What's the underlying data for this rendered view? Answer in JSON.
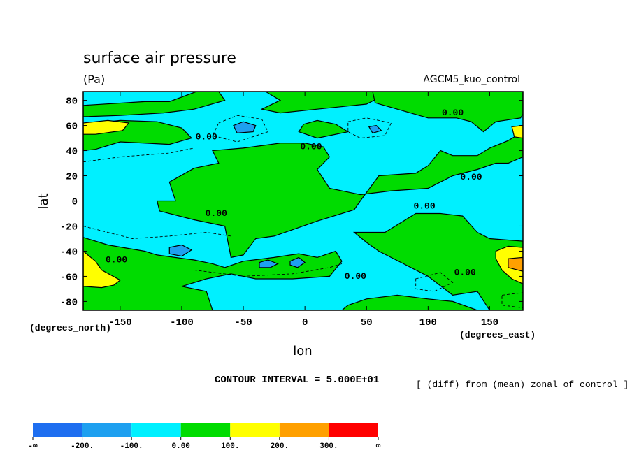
{
  "chart_data": {
    "type": "heatmap",
    "title": "surface air pressure",
    "units": "(Pa)",
    "model": "AGCM5_kuo_control",
    "xlabel": "lon",
    "ylabel": "lat",
    "xunits": "(degrees_east)",
    "yunits": "(degrees_north)",
    "xlim": [
      -180,
      177
    ],
    "ylim": [
      -87,
      87
    ],
    "xticks": [
      -150,
      -100,
      -50,
      0,
      50,
      100,
      150
    ],
    "xtick_labels": [
      "-150",
      "-100",
      "-50",
      "0",
      "50",
      "100",
      "150"
    ],
    "yticks": [
      80,
      60,
      40,
      20,
      0,
      -20,
      -40,
      -60,
      -80
    ],
    "ytick_labels": [
      "80",
      "60",
      "40",
      "20",
      "0",
      "-20",
      "-40",
      "-60",
      "-80"
    ],
    "contour_interval": "CONTOUR INTERVAL = 5.000E+01",
    "note": "[ (diff) from (mean) zonal of control ]",
    "contour_labels": [
      {
        "text": "0.00",
        "lon": -153,
        "lat": -49
      },
      {
        "text": "0.00",
        "lon": -80,
        "lat": 49
      },
      {
        "text": "0.00",
        "lon": 5,
        "lat": 41
      },
      {
        "text": "0.00",
        "lon": -72,
        "lat": -12
      },
      {
        "text": "0.00",
        "lon": 120,
        "lat": 68
      },
      {
        "text": "0.00",
        "lon": 135,
        "lat": 17
      },
      {
        "text": "0.00",
        "lon": 97,
        "lat": -6
      },
      {
        "text": "0.00",
        "lon": 41,
        "lat": -62
      },
      {
        "text": "0.00",
        "lon": 130,
        "lat": -59
      }
    ],
    "colorbar": {
      "labels": [
        "-∞",
        "-200.",
        "-100.",
        "0.00",
        "100.",
        "200.",
        "300.",
        "∞"
      ],
      "colors": [
        "#1e6ef0",
        "#1ea0f0",
        "#00f0ff",
        "#00dc00",
        "#ffff00",
        "#ffa000",
        "#ff0000"
      ]
    },
    "regions": [
      {
        "level": "0 to 100",
        "color": "#00dc00",
        "lonlat": [
          [
            -180,
            76
          ],
          [
            -130,
            79
          ],
          [
            -110,
            79
          ],
          [
            -88,
            87
          ],
          [
            -70,
            87
          ],
          [
            -65,
            80
          ],
          [
            -90,
            73
          ],
          [
            -115,
            70
          ],
          [
            -150,
            68
          ],
          [
            -180,
            67
          ]
        ]
      },
      {
        "level": "0 to 100",
        "color": "#00dc00",
        "lonlat": [
          [
            -180,
            61
          ],
          [
            -150,
            64
          ],
          [
            -120,
            63
          ],
          [
            -100,
            58
          ],
          [
            -92,
            50
          ],
          [
            -110,
            45
          ],
          [
            -150,
            47
          ],
          [
            -170,
            41
          ],
          [
            -180,
            40
          ]
        ]
      },
      {
        "level": "0 to 100",
        "color": "#00dc00",
        "lonlat": [
          [
            -32,
            87
          ],
          [
            -20,
            80
          ],
          [
            -35,
            73
          ],
          [
            -20,
            70
          ],
          [
            10,
            73
          ],
          [
            50,
            77
          ],
          [
            58,
            81
          ],
          [
            56,
            87
          ]
        ]
      },
      {
        "level": "0 to 100",
        "color": "#00dc00",
        "lonlat": [
          [
            55,
            87
          ],
          [
            57,
            78
          ],
          [
            75,
            73
          ],
          [
            100,
            66
          ],
          [
            123,
            66
          ],
          [
            135,
            63
          ],
          [
            145,
            55
          ],
          [
            155,
            63
          ],
          [
            175,
            66
          ],
          [
            177,
            69
          ],
          [
            177,
            87
          ]
        ]
      },
      {
        "level": "0 to 100",
        "color": "#00dc00",
        "lonlat": [
          [
            -1,
            61
          ],
          [
            10,
            64
          ],
          [
            25,
            61
          ],
          [
            35,
            55
          ],
          [
            10,
            50
          ],
          [
            -5,
            55
          ]
        ]
      },
      {
        "level": "0 to 100",
        "color": "#00dc00",
        "lonlat": [
          [
            -90,
            26
          ],
          [
            -70,
            30
          ],
          [
            -75,
            40
          ],
          [
            -50,
            42
          ],
          [
            -20,
            46
          ],
          [
            0,
            46
          ],
          [
            15,
            43
          ],
          [
            20,
            35
          ],
          [
            10,
            25
          ],
          [
            20,
            10
          ],
          [
            45,
            5
          ],
          [
            70,
            8
          ],
          [
            100,
            10
          ],
          [
            120,
            20
          ],
          [
            140,
            25
          ],
          [
            155,
            30
          ],
          [
            165,
            30
          ],
          [
            177,
            35
          ],
          [
            177,
            55
          ],
          [
            165,
            48
          ],
          [
            150,
            42
          ],
          [
            140,
            36
          ],
          [
            120,
            36
          ],
          [
            110,
            40
          ],
          [
            100,
            28
          ],
          [
            90,
            22
          ],
          [
            60,
            20
          ],
          [
            45,
            0
          ],
          [
            40,
            -7
          ],
          [
            10,
            -16
          ],
          [
            -25,
            -28
          ],
          [
            -40,
            -30
          ],
          [
            -50,
            -43
          ],
          [
            -60,
            -45
          ],
          [
            -62,
            -35
          ],
          [
            -65,
            -20
          ],
          [
            -90,
            -15
          ],
          [
            -118,
            -8
          ],
          [
            -120,
            0
          ],
          [
            -105,
            0
          ],
          [
            -110,
            15
          ]
        ]
      },
      {
        "level": "0 to 100",
        "color": "#00dc00",
        "lonlat": [
          [
            40,
            -25
          ],
          [
            65,
            -25
          ],
          [
            90,
            -10
          ],
          [
            110,
            -10
          ],
          [
            128,
            -12
          ],
          [
            140,
            -25
          ],
          [
            150,
            -30
          ],
          [
            177,
            -32
          ],
          [
            177,
            -87
          ],
          [
            150,
            -87
          ],
          [
            140,
            -72
          ],
          [
            120,
            -75
          ],
          [
            100,
            -60
          ],
          [
            80,
            -50
          ],
          [
            60,
            -40
          ],
          [
            50,
            -33
          ]
        ]
      },
      {
        "level": "0 to 100",
        "color": "#00dc00",
        "lonlat": [
          [
            -180,
            -29
          ],
          [
            -160,
            -35
          ],
          [
            -130,
            -40
          ],
          [
            -120,
            -43
          ],
          [
            -90,
            -47
          ],
          [
            -75,
            -50
          ],
          [
            -65,
            -53
          ],
          [
            -50,
            -48
          ],
          [
            -25,
            -45
          ],
          [
            -5,
            -42
          ],
          [
            10,
            -45
          ],
          [
            25,
            -40
          ],
          [
            30,
            -48
          ],
          [
            20,
            -60
          ],
          [
            -10,
            -62
          ],
          [
            -40,
            -62
          ],
          [
            -60,
            -58
          ],
          [
            -80,
            -62
          ],
          [
            -100,
            -68
          ],
          [
            -80,
            -72
          ],
          [
            -75,
            -87
          ],
          [
            -180,
            -87
          ]
        ]
      },
      {
        "level": "0 to 100",
        "color": "#00dc00",
        "lonlat": [
          [
            35,
            -83
          ],
          [
            50,
            -78
          ],
          [
            75,
            -75
          ],
          [
            100,
            -78
          ],
          [
            120,
            -80
          ],
          [
            140,
            -87
          ],
          [
            30,
            -87
          ]
        ]
      },
      {
        "level": "100 to 200",
        "color": "#ffff00",
        "lonlat": [
          [
            -180,
            62
          ],
          [
            -160,
            64
          ],
          [
            -143,
            62
          ],
          [
            -148,
            56
          ],
          [
            -170,
            53
          ],
          [
            -180,
            53
          ]
        ]
      },
      {
        "level": "100 to 200",
        "color": "#ffff00",
        "lonlat": [
          [
            168,
            59
          ],
          [
            177,
            60
          ],
          [
            177,
            50
          ],
          [
            170,
            51
          ]
        ]
      },
      {
        "level": "100 to 200",
        "color": "#ffff00",
        "lonlat": [
          [
            -180,
            -40
          ],
          [
            -170,
            -48
          ],
          [
            -165,
            -55
          ],
          [
            -150,
            -63
          ],
          [
            -155,
            -67
          ],
          [
            -165,
            -69
          ],
          [
            -180,
            -68
          ]
        ]
      },
      {
        "level": "100 to 200",
        "color": "#ffff00",
        "lonlat": [
          [
            155,
            -40
          ],
          [
            165,
            -36
          ],
          [
            177,
            -37
          ],
          [
            177,
            -66
          ],
          [
            168,
            -62
          ],
          [
            160,
            -55
          ],
          [
            155,
            -46
          ]
        ]
      },
      {
        "level": "200 to 300",
        "color": "#ffa000",
        "lonlat": [
          [
            165,
            -46
          ],
          [
            177,
            -45
          ],
          [
            177,
            -56
          ],
          [
            165,
            -53
          ]
        ]
      },
      {
        "level": "-200 to -100",
        "color": "#1ea0f0",
        "lonlat": [
          [
            -58,
            60
          ],
          [
            -50,
            63
          ],
          [
            -40,
            60
          ],
          [
            -42,
            55
          ],
          [
            -55,
            54
          ]
        ]
      },
      {
        "level": "-200 to -100",
        "color": "#1ea0f0",
        "lonlat": [
          [
            52,
            59
          ],
          [
            58,
            60
          ],
          [
            62,
            56
          ],
          [
            55,
            54
          ]
        ]
      },
      {
        "level": "-200 to -100",
        "color": "#1ea0f0",
        "lonlat": [
          [
            -110,
            -37
          ],
          [
            -100,
            -35
          ],
          [
            -92,
            -39
          ],
          [
            -100,
            -44
          ],
          [
            -110,
            -42
          ]
        ]
      },
      {
        "level": "-200 to -100",
        "color": "#1ea0f0",
        "lonlat": [
          [
            -37,
            -49
          ],
          [
            -30,
            -47
          ],
          [
            -22,
            -50
          ],
          [
            -28,
            -53
          ],
          [
            -37,
            -53
          ]
        ]
      },
      {
        "level": "-200 to -100",
        "color": "#1ea0f0",
        "lonlat": [
          [
            -12,
            -48
          ],
          [
            -5,
            -45
          ],
          [
            0,
            -49
          ],
          [
            -6,
            -53
          ],
          [
            -12,
            -51
          ]
        ]
      }
    ],
    "dashed_contours": [
      {
        "closed": true,
        "lonlat": [
          [
            -70,
            62
          ],
          [
            -55,
            68
          ],
          [
            -35,
            65
          ],
          [
            -30,
            55
          ],
          [
            -55,
            47
          ],
          [
            -75,
            52
          ]
        ]
      },
      {
        "closed": true,
        "lonlat": [
          [
            35,
            63
          ],
          [
            50,
            66
          ],
          [
            70,
            62
          ],
          [
            65,
            52
          ],
          [
            45,
            50
          ],
          [
            35,
            55
          ]
        ]
      },
      {
        "closed": false,
        "lonlat": [
          [
            -180,
            31
          ],
          [
            -150,
            35
          ],
          [
            -110,
            38
          ],
          [
            -90,
            42
          ]
        ]
      },
      {
        "closed": false,
        "lonlat": [
          [
            -180,
            -20
          ],
          [
            -140,
            -30
          ],
          [
            -110,
            -28
          ],
          [
            -80,
            -25
          ],
          [
            -60,
            -28
          ]
        ]
      },
      {
        "closed": false,
        "lonlat": [
          [
            -90,
            -55
          ],
          [
            -50,
            -60
          ],
          [
            -10,
            -58
          ],
          [
            20,
            -53
          ],
          [
            30,
            -50
          ]
        ]
      },
      {
        "closed": true,
        "lonlat": [
          [
            90,
            -62
          ],
          [
            110,
            -57
          ],
          [
            120,
            -65
          ],
          [
            105,
            -72
          ],
          [
            90,
            -70
          ]
        ]
      },
      {
        "closed": true,
        "lonlat": [
          [
            160,
            -75
          ],
          [
            177,
            -73
          ],
          [
            177,
            -85
          ],
          [
            160,
            -83
          ]
        ]
      }
    ]
  }
}
